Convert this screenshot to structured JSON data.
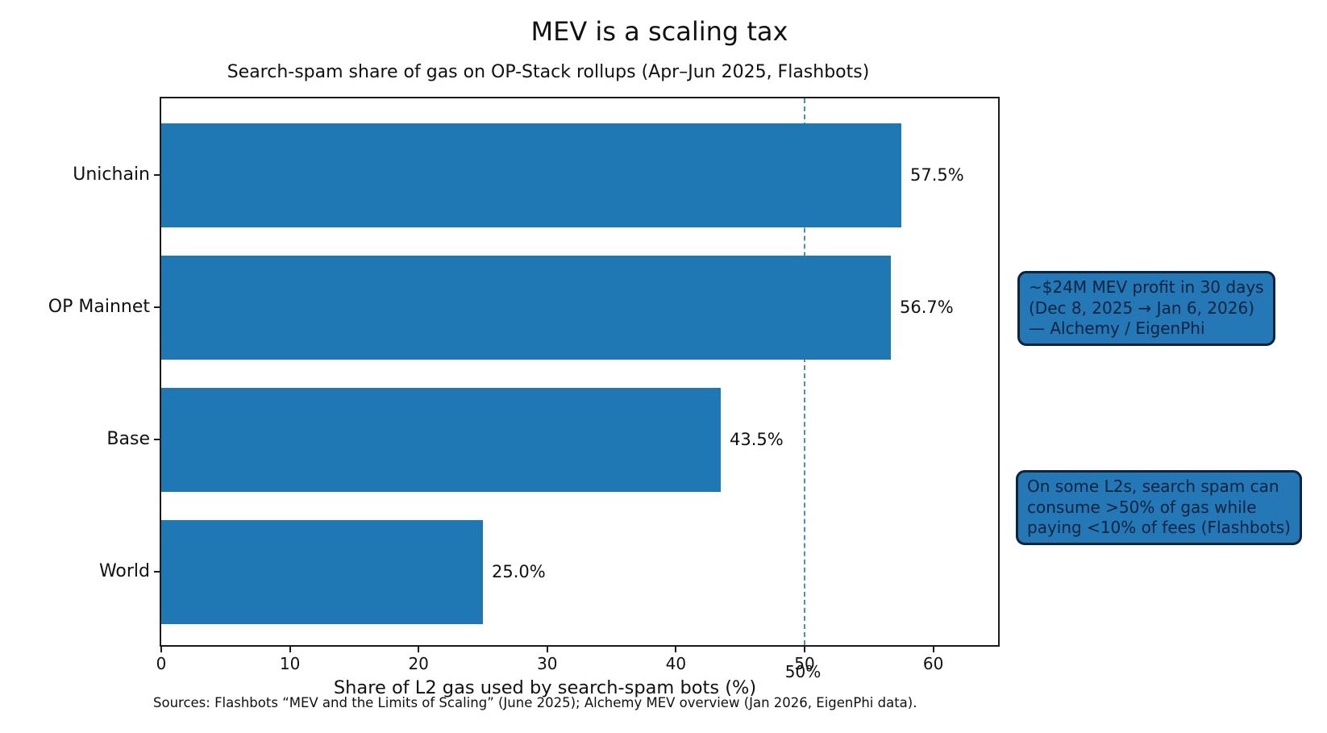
{
  "chart_data": {
    "type": "bar",
    "orientation": "horizontal",
    "suptitle": "MEV is a scaling tax",
    "title": "Search-spam share of gas on OP-Stack rollups (Apr–Jun 2025, Flashbots)",
    "categories": [
      "Unichain",
      "OP Mainnet",
      "Base",
      "World"
    ],
    "values": [
      57.5,
      56.7,
      43.5,
      25.0
    ],
    "value_labels": [
      "57.5%",
      "56.7%",
      "43.5%",
      "25.0%"
    ],
    "xlabel": "Share of L2 gas used by search-spam bots (%)",
    "ylabel": "",
    "xlim": [
      0,
      65
    ],
    "xticks": [
      0,
      10,
      20,
      30,
      40,
      50,
      60
    ],
    "grid": false,
    "legend": null,
    "bar_color": "#1f77b4",
    "reference_line": {
      "x": 50,
      "label": "50%",
      "style": "dashed",
      "color": "#4a8fc2"
    }
  },
  "annotations": [
    {
      "lines": [
        "~$24M MEV profit in 30 days",
        "(Dec 8, 2025 → Jan 6, 2026)",
        "— Alchemy / EigenPhi"
      ]
    },
    {
      "lines": [
        "On some L2s, search spam can",
        "consume >50% of gas while",
        "paying <10% of fees (Flashbots)"
      ]
    }
  ],
  "footer": {
    "source": "Sources: Flashbots “MEV and the Limits of Scaling” (June 2025); Alchemy MEV overview (Jan 2026, EigenPhi data)."
  },
  "colors": {
    "bar": "#1f77b4",
    "refline": "#4a8fc2",
    "annotation_bg": "#2478b5",
    "annotation_border": "#0c2340",
    "annotation_text": "#0c2340",
    "axis_text": "#111111"
  }
}
